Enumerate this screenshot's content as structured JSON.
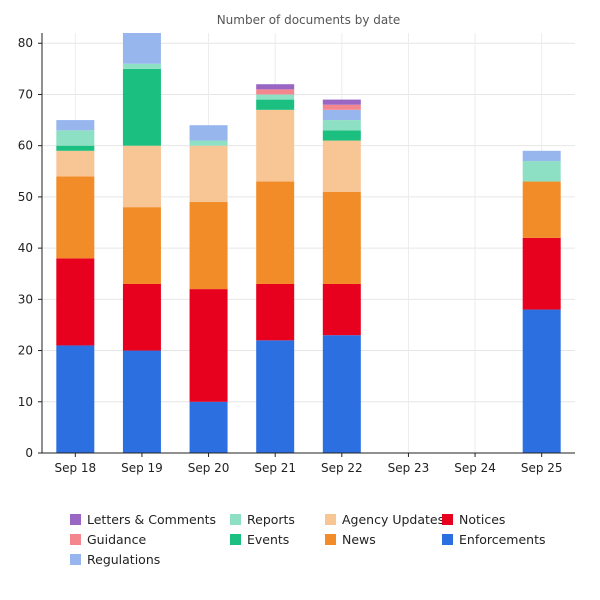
{
  "chart_data": {
    "type": "bar",
    "stacked": true,
    "title": "Number of documents by date",
    "xlabel": "",
    "ylabel": "",
    "ylim": [
      0,
      82
    ],
    "yticks": [
      0,
      10,
      20,
      30,
      40,
      50,
      60,
      70,
      80
    ],
    "grid": true,
    "legend_position": "bottom",
    "categories": [
      "Sep 18",
      "Sep 19",
      "Sep 20",
      "Sep 21",
      "Sep 22",
      "Sep 23",
      "Sep 24",
      "Sep 25"
    ],
    "series": [
      {
        "name": "Enforcements",
        "color": "#2c6fe0",
        "values": [
          21,
          20,
          10,
          22,
          23,
          0,
          0,
          28
        ]
      },
      {
        "name": "Notices",
        "color": "#e8001f",
        "values": [
          17,
          13,
          22,
          11,
          10,
          0,
          0,
          14
        ]
      },
      {
        "name": "News",
        "color": "#f28c28",
        "values": [
          16,
          15,
          17,
          20,
          18,
          0,
          0,
          11
        ]
      },
      {
        "name": "Agency Updates",
        "color": "#f8c594",
        "values": [
          5,
          12,
          11,
          14,
          10,
          0,
          0,
          0
        ]
      },
      {
        "name": "Events",
        "color": "#1bbf7f",
        "values": [
          1,
          15,
          0,
          2,
          2,
          0,
          0,
          0
        ]
      },
      {
        "name": "Reports",
        "color": "#8ee0c4",
        "values": [
          3,
          1,
          1,
          1,
          2,
          0,
          0,
          4
        ]
      },
      {
        "name": "Regulations",
        "color": "#98b6ee",
        "values": [
          2,
          6,
          3,
          0,
          2,
          0,
          0,
          2
        ]
      },
      {
        "name": "Guidance",
        "color": "#f4868e",
        "values": [
          0,
          0,
          0,
          1,
          1,
          0,
          0,
          0
        ]
      },
      {
        "name": "Letters & Comments",
        "color": "#9966c4",
        "values": [
          0,
          0,
          0,
          1,
          1,
          0,
          0,
          0
        ]
      }
    ],
    "legend_order": [
      "Letters & Comments",
      "Reports",
      "Agency Updates",
      "Notices",
      "Guidance",
      "Events",
      "News",
      "Enforcements",
      "Regulations"
    ]
  }
}
